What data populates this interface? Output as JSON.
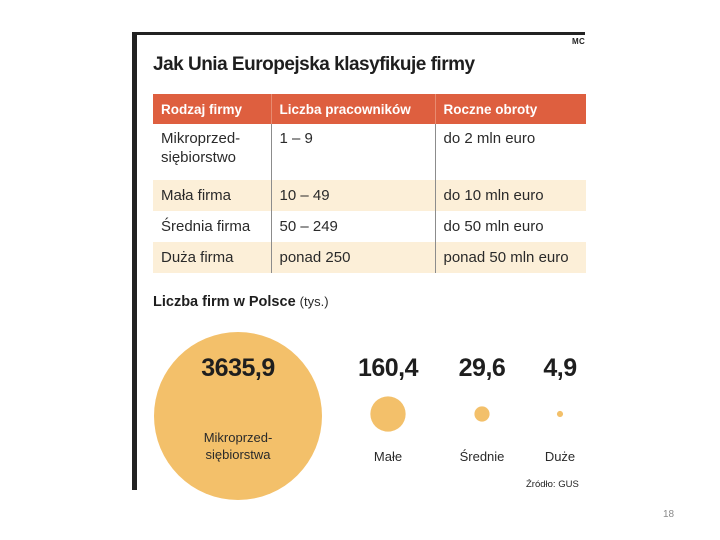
{
  "author": "MC",
  "title": "Jak Unia Europejska klasyfikuje firmy",
  "table": {
    "headers": [
      "Rodzaj firmy",
      "Liczba pracowników",
      "Roczne obroty"
    ],
    "rows": [
      [
        "Mikroprzed-\nsiębiorstwo",
        "1 – 9",
        "do 2 mln euro"
      ],
      [
        "Mała firma",
        "10 – 49",
        "do 10 mln euro"
      ],
      [
        "Średnia firma",
        "50 – 249",
        "do 50 mln euro"
      ],
      [
        "Duża firma",
        "ponad 250",
        "ponad 50 mln euro"
      ]
    ]
  },
  "chart_data": {
    "type": "bubble",
    "title": "Liczba firm w Polsce",
    "unit": "(tys.)",
    "categories": [
      "Mikroprzed-\nsiębiorstwa",
      "Małe",
      "Średnie",
      "Duże"
    ],
    "values": [
      3635.9,
      160.4,
      29.6,
      4.9
    ],
    "value_labels": [
      "3635,9",
      "160,4",
      "29,6",
      "4,9"
    ],
    "color": "#f3c06a",
    "source": "Źródło: GUS"
  },
  "page_number": "18",
  "colors": {
    "header": "#de5f3f",
    "row_alt": "#fcefd8",
    "bubble": "#f3c06a",
    "text": "#222222"
  }
}
